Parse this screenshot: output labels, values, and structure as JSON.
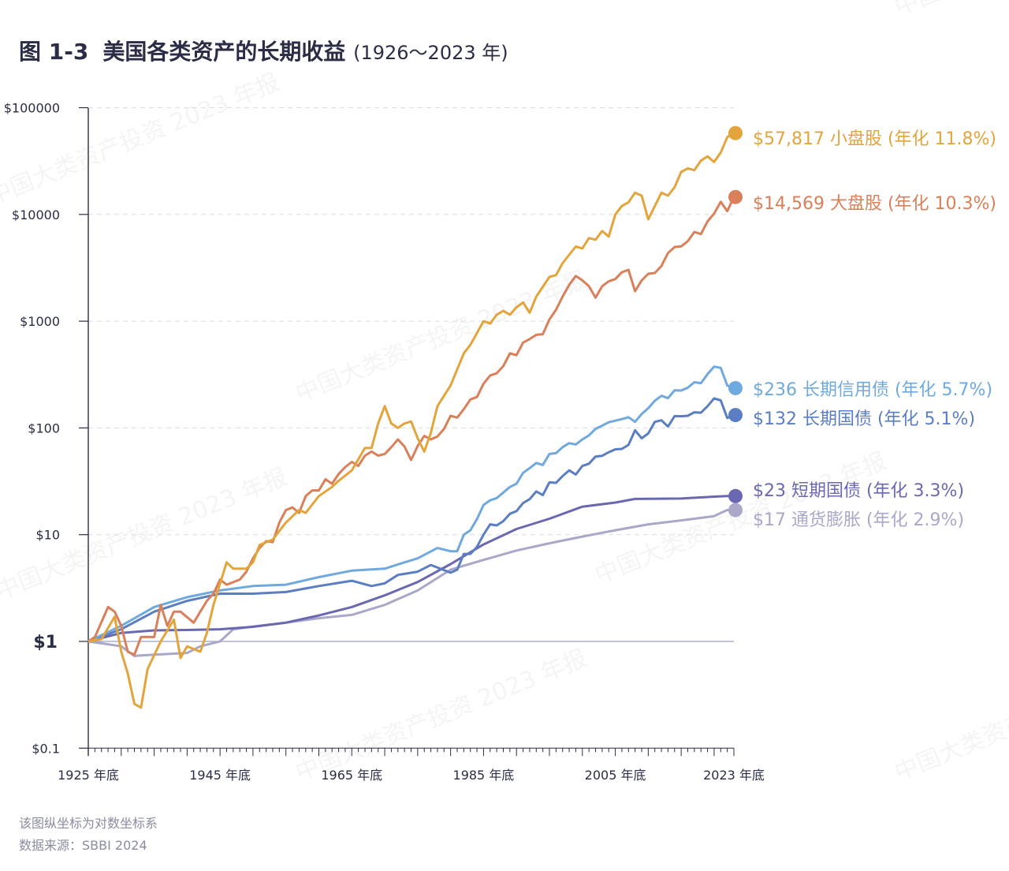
{
  "title": {
    "figure_no": "图 1-3",
    "text": "美国各类资产的长期收益",
    "range": "(1926～2023 年)"
  },
  "watermark": "中国大类资产投资 2023 年报",
  "footer": {
    "note": "该图纵坐标为对数坐标系",
    "source": "数据来源：SBBI 2024"
  },
  "chart_data": {
    "type": "line",
    "title": "美国各类资产的长期收益 (1926～2023 年)",
    "yscale": "log",
    "ylim": [
      0.1,
      100000
    ],
    "xlim": [
      1925,
      2023
    ],
    "grid": "horizontal dashed",
    "y_ticks": [
      {
        "value": 100000,
        "label": "$100000"
      },
      {
        "value": 10000,
        "label": "$10000"
      },
      {
        "value": 1000,
        "label": "$1000"
      },
      {
        "value": 100,
        "label": "$100"
      },
      {
        "value": 10,
        "label": "$10"
      },
      {
        "value": 1,
        "label": "$1"
      },
      {
        "value": 0.1,
        "label": "$0.1"
      }
    ],
    "x_ticks": [
      {
        "value": 1925,
        "label": "1925 年底"
      },
      {
        "value": 1945,
        "label": "1945 年底"
      },
      {
        "value": 1965,
        "label": "1965 年底"
      },
      {
        "value": 1985,
        "label": "1985 年底"
      },
      {
        "value": 2005,
        "label": "2005 年底"
      },
      {
        "value": 2023,
        "label": "2023 年底"
      }
    ],
    "series": [
      {
        "name": "小盘股",
        "end_label": "$57,817 小盘股 (年化 11.8%)",
        "color": "#E3A53B",
        "x": [
          1925,
          1927,
          1929,
          1930,
          1931,
          1932,
          1933,
          1934,
          1936,
          1938,
          1939,
          1940,
          1942,
          1943,
          1944,
          1946,
          1947,
          1949,
          1950,
          1951,
          1953,
          1955,
          1957,
          1958,
          1960,
          1962,
          1963,
          1965,
          1967,
          1968,
          1969,
          1970,
          1971,
          1972,
          1973,
          1974,
          1975,
          1976,
          1977,
          1978,
          1980,
          1982,
          1983,
          1985,
          1986,
          1987,
          1988,
          1989,
          1990,
          1991,
          1992,
          1993,
          1995,
          1996,
          1997,
          1999,
          2000,
          2001,
          2002,
          2003,
          2004,
          2005,
          2006,
          2007,
          2008,
          2009,
          2010,
          2011,
          2012,
          2013,
          2014,
          2015,
          2016,
          2017,
          2018,
          2019,
          2020,
          2021,
          2022,
          2023
        ],
        "values": [
          1,
          1.05,
          1.7,
          0.8,
          0.5,
          0.26,
          0.24,
          0.55,
          1.0,
          1.6,
          0.7,
          0.9,
          0.8,
          1.2,
          2.2,
          5.5,
          4.8,
          4.8,
          5.5,
          8,
          9,
          13,
          17,
          16,
          23,
          28,
          32,
          40,
          65,
          65,
          110,
          160,
          110,
          100,
          110,
          115,
          80,
          60,
          90,
          160,
          250,
          500,
          600,
          1000,
          950,
          1150,
          1250,
          1150,
          1350,
          1500,
          1200,
          1700,
          2600,
          2700,
          3500,
          5000,
          4800,
          6000,
          5800,
          7000,
          6200,
          10000,
          12000,
          13000,
          16000,
          15000,
          9000,
          12000,
          16000,
          15000,
          18000,
          25000,
          27000,
          26000,
          32000,
          35000,
          31000,
          38000,
          53000,
          57817
        ]
      },
      {
        "name": "大盘股",
        "end_label": "$14,569 大盘股 (年化 10.3%)",
        "color": "#D9805A",
        "x": [
          1925,
          1926,
          1928,
          1929,
          1930,
          1931,
          1932,
          1933,
          1935,
          1936,
          1937,
          1938,
          1939,
          1941,
          1942,
          1943,
          1944,
          1945,
          1946,
          1948,
          1949,
          1950,
          1951,
          1952,
          1953,
          1954,
          1955,
          1956,
          1957,
          1958,
          1959,
          1960,
          1961,
          1962,
          1963,
          1964,
          1965,
          1966,
          1967,
          1968,
          1969,
          1970,
          1971,
          1972,
          1973,
          1974,
          1975,
          1976,
          1977,
          1978,
          1979,
          1980,
          1981,
          1982,
          1983,
          1984,
          1985,
          1986,
          1987,
          1988,
          1989,
          1990,
          1991,
          1992,
          1993,
          1994,
          1995,
          1996,
          1997,
          1998,
          1999,
          2000,
          2001,
          2002,
          2003,
          2004,
          2005,
          2006,
          2007,
          2008,
          2009,
          2010,
          2011,
          2012,
          2013,
          2014,
          2015,
          2016,
          2017,
          2018,
          2019,
          2020,
          2021,
          2022,
          2023
        ],
        "values": [
          1,
          1.1,
          2.1,
          1.9,
          1.4,
          0.8,
          0.75,
          1.1,
          1.1,
          2.2,
          1.4,
          1.9,
          1.9,
          1.5,
          1.9,
          2.4,
          2.8,
          3.8,
          3.4,
          3.8,
          4.5,
          6,
          7.5,
          8.7,
          8.5,
          13,
          17,
          18,
          16,
          23,
          26,
          26,
          33,
          30,
          37,
          43,
          48,
          44,
          55,
          60,
          55,
          57,
          66,
          78,
          67,
          50,
          68,
          84,
          78,
          83,
          98,
          130,
          125,
          150,
          185,
          195,
          260,
          310,
          325,
          380,
          500,
          480,
          630,
          680,
          745,
          755,
          1040,
          1280,
          1700,
          2190,
          2650,
          2410,
          2130,
          1660,
          2130,
          2360,
          2480,
          2870,
          3030,
          1910,
          2410,
          2780,
          2830,
          3290,
          4350,
          4950,
          5020,
          5620,
          6850,
          6550,
          8610,
          10190,
          13120,
          10740,
          14569
        ]
      },
      {
        "name": "长期信用债",
        "end_label": "$236 长期信用债 (年化 5.7%)",
        "color": "#6FA9DD",
        "x": [
          1925,
          1930,
          1935,
          1940,
          1945,
          1950,
          1955,
          1960,
          1965,
          1970,
          1973,
          1975,
          1978,
          1980,
          1981,
          1982,
          1983,
          1984,
          1985,
          1986,
          1987,
          1989,
          1990,
          1991,
          1992,
          1993,
          1994,
          1995,
          1996,
          1997,
          1998,
          1999,
          2000,
          2001,
          2002,
          2003,
          2004,
          2005,
          2006,
          2007,
          2008,
          2009,
          2010,
          2011,
          2012,
          2013,
          2014,
          2015,
          2016,
          2017,
          2018,
          2019,
          2020,
          2021,
          2022,
          2023
        ],
        "values": [
          1,
          1.4,
          2.1,
          2.6,
          3,
          3.3,
          3.4,
          4,
          4.6,
          4.8,
          5.5,
          6,
          7.5,
          7,
          7,
          10,
          11,
          14,
          19,
          21,
          22,
          28,
          30,
          38,
          42,
          47,
          45,
          57,
          58,
          66,
          72,
          70,
          78,
          85,
          98,
          105,
          113,
          117,
          121,
          126,
          114,
          135,
          153,
          180,
          200,
          190,
          225,
          224,
          238,
          268,
          263,
          320,
          375,
          365,
          250,
          236
        ]
      },
      {
        "name": "长期国债",
        "end_label": "$132 长期国债 (年化 5.1%)",
        "color": "#5B7EC3",
        "x": [
          1925,
          1930,
          1935,
          1940,
          1945,
          1950,
          1955,
          1960,
          1965,
          1968,
          1970,
          1972,
          1975,
          1977,
          1980,
          1981,
          1982,
          1983,
          1984,
          1985,
          1986,
          1987,
          1988,
          1989,
          1990,
          1991,
          1992,
          1993,
          1994,
          1995,
          1996,
          1997,
          1998,
          1999,
          2000,
          2001,
          2002,
          2003,
          2004,
          2005,
          2006,
          2007,
          2008,
          2009,
          2010,
          2011,
          2012,
          2013,
          2014,
          2015,
          2016,
          2017,
          2018,
          2019,
          2020,
          2021,
          2022,
          2023
        ],
        "values": [
          1,
          1.3,
          1.9,
          2.4,
          2.8,
          2.8,
          2.9,
          3.3,
          3.7,
          3.3,
          3.5,
          4.2,
          4.5,
          5.2,
          4.4,
          4.7,
          6.6,
          6.6,
          7.7,
          10,
          12.5,
          12.2,
          13.4,
          15.7,
          16.6,
          19.8,
          21.5,
          25.4,
          23.5,
          30.9,
          30.6,
          35.4,
          40,
          36.6,
          44,
          46.2,
          53.9,
          54.8,
          59.2,
          63,
          63.6,
          69.4,
          95,
          80,
          88.8,
          114,
          118,
          103,
          129,
          128.7,
          130,
          140,
          139,
          160,
          189,
          181,
          124,
          132
        ]
      },
      {
        "name": "短期国债",
        "end_label": "$23 短期国债 (年化 3.3%)",
        "color": "#6A68B1",
        "x": [
          1925,
          1930,
          1935,
          1940,
          1945,
          1950,
          1955,
          1960,
          1965,
          1970,
          1975,
          1980,
          1985,
          1990,
          1995,
          2000,
          2005,
          2008,
          2010,
          2015,
          2020,
          2022,
          2023
        ],
        "values": [
          1,
          1.2,
          1.27,
          1.28,
          1.3,
          1.37,
          1.5,
          1.75,
          2.1,
          2.7,
          3.6,
          5.3,
          8.1,
          11.3,
          14.1,
          18.3,
          20,
          21.6,
          21.7,
          21.8,
          22.7,
          23,
          23
        ]
      },
      {
        "name": "通货膨胀",
        "end_label": "$17 通货膨胀 (年化 2.9%)",
        "color": "#A9A8C9",
        "x": [
          1925,
          1927,
          1930,
          1932,
          1933,
          1940,
          1942,
          1945,
          1947,
          1950,
          1955,
          1960,
          1965,
          1970,
          1975,
          1980,
          1985,
          1990,
          1995,
          2000,
          2005,
          2010,
          2015,
          2020,
          2021,
          2022,
          2023
        ],
        "values": [
          1,
          0.96,
          0.9,
          0.73,
          0.74,
          0.78,
          0.9,
          1,
          1.3,
          1.38,
          1.5,
          1.65,
          1.77,
          2.2,
          3,
          4.7,
          5.8,
          7.1,
          8.3,
          9.6,
          11,
          12.5,
          13.6,
          14.9,
          16,
          17,
          17
        ]
      }
    ]
  }
}
